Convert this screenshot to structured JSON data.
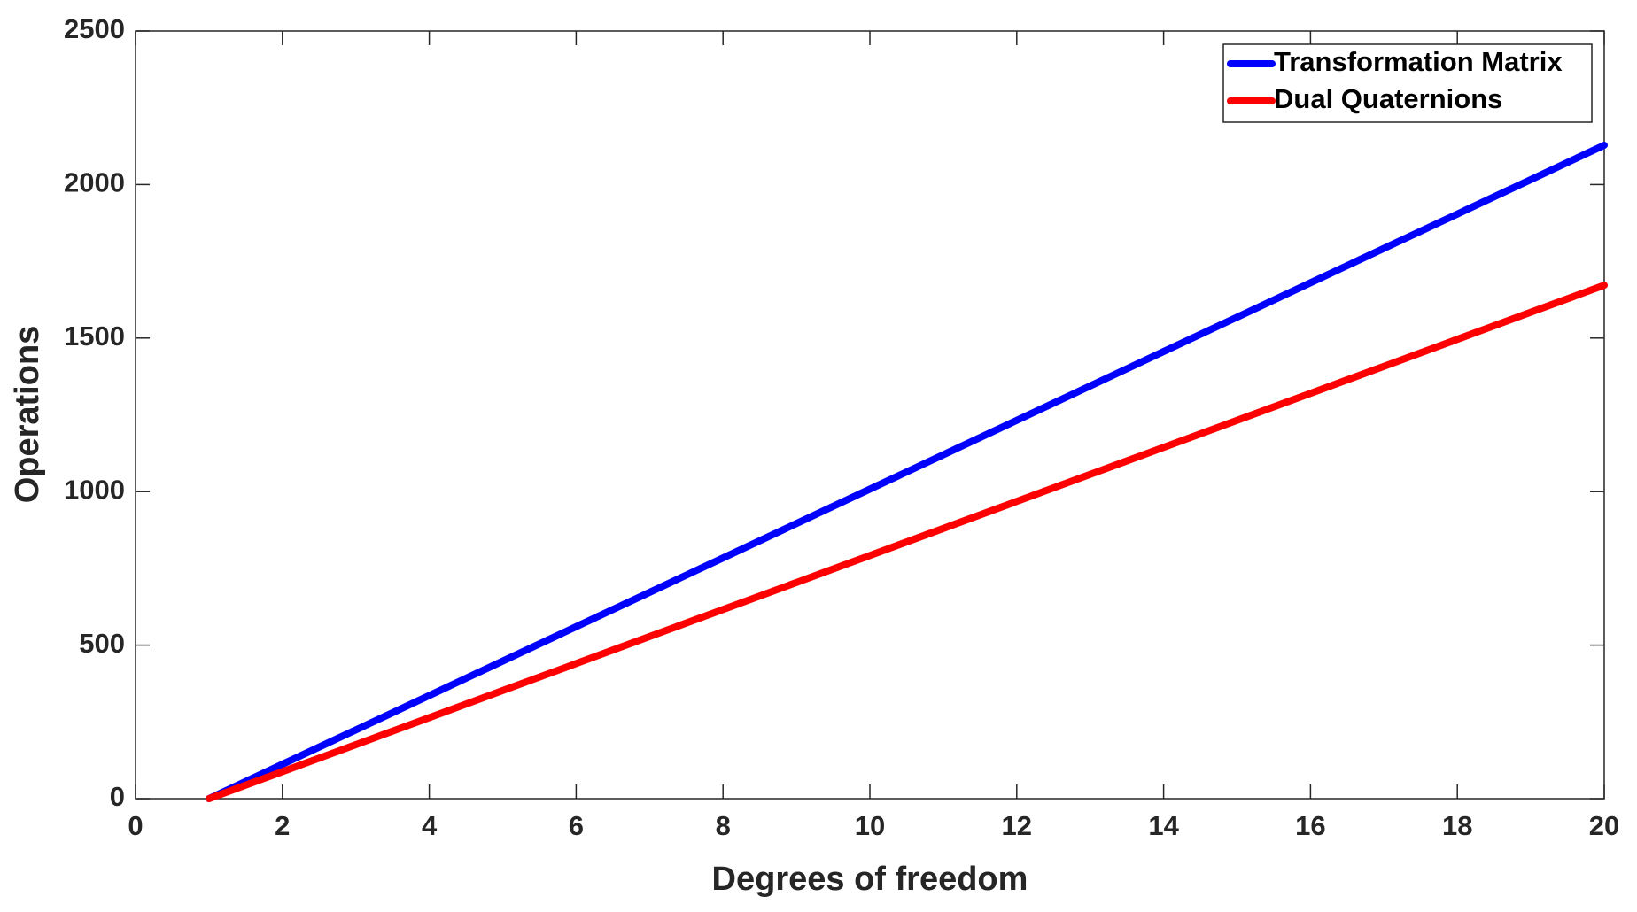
{
  "chart_data": {
    "type": "line",
    "xlabel": "Degrees of freedom",
    "ylabel": "Operations",
    "x": [
      1,
      2,
      3,
      4,
      5,
      6,
      7,
      8,
      9,
      10,
      11,
      12,
      13,
      14,
      15,
      16,
      17,
      18,
      19,
      20
    ],
    "series": [
      {
        "name": "Transformation Matrix",
        "color": "#0000ff",
        "values": [
          0,
          112,
          224,
          336,
          448,
          560,
          672,
          784,
          896,
          1008,
          1120,
          1232,
          1344,
          1456,
          1568,
          1680,
          1792,
          1904,
          2016,
          2128
        ]
      },
      {
        "name": "Dual Quaternions",
        "color": "#ff0000",
        "values": [
          0,
          88,
          176,
          264,
          352,
          440,
          528,
          616,
          704,
          792,
          880,
          968,
          1056,
          1144,
          1232,
          1320,
          1408,
          1496,
          1584,
          1672
        ]
      }
    ],
    "xlim": [
      0,
      20
    ],
    "ylim": [
      0,
      2500
    ],
    "xticks": [
      0,
      2,
      4,
      6,
      8,
      10,
      12,
      14,
      16,
      18,
      20
    ],
    "yticks": [
      0,
      500,
      1000,
      1500,
      2000,
      2500
    ],
    "legend": "northeast"
  }
}
